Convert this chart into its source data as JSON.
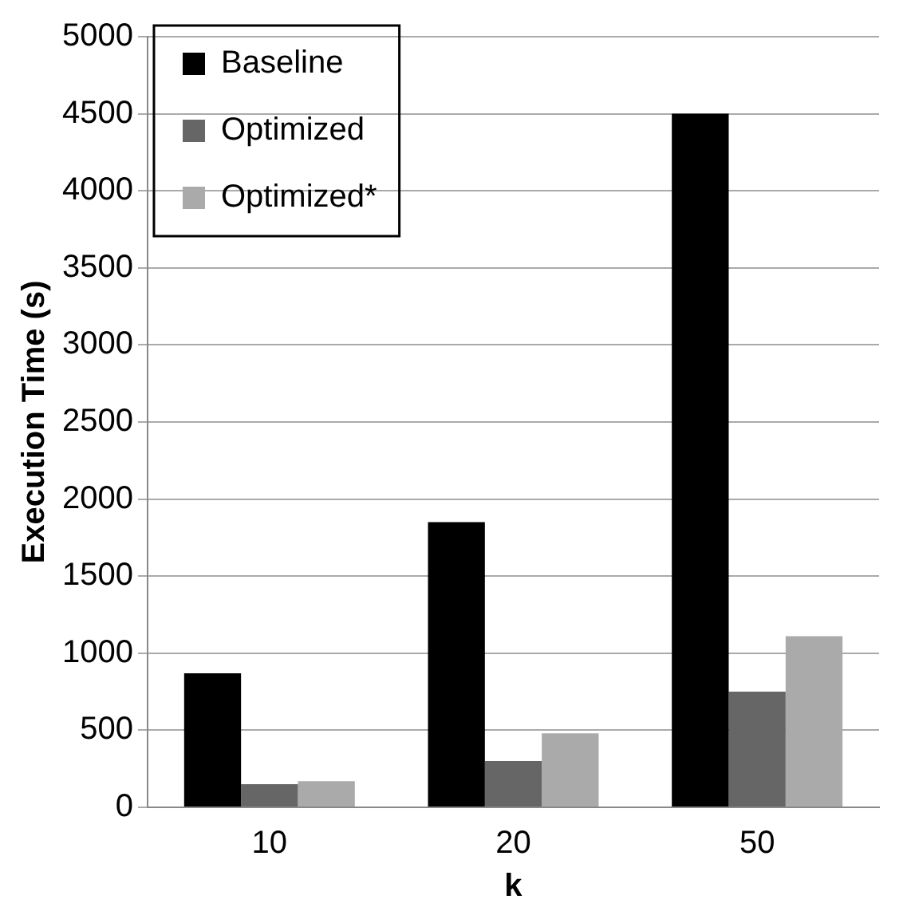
{
  "chart_data": {
    "type": "bar",
    "xlabel": "k",
    "ylabel": "Execution Time (s)",
    "categories": [
      "10",
      "20",
      "50"
    ],
    "series": [
      {
        "name": "Baseline",
        "color": "#000000",
        "values": [
          870,
          1850,
          4500
        ]
      },
      {
        "name": "Optimized",
        "color": "#666666",
        "values": [
          150,
          300,
          750
        ]
      },
      {
        "name": "Optimized*",
        "color": "#aaaaaa",
        "values": [
          170,
          480,
          1110
        ]
      }
    ],
    "ylim": [
      0,
      5000
    ],
    "yticks": [
      0,
      500,
      1000,
      1500,
      2000,
      2500,
      3000,
      3500,
      4000,
      4500,
      5000
    ],
    "grid": "y",
    "legend": "top left"
  }
}
